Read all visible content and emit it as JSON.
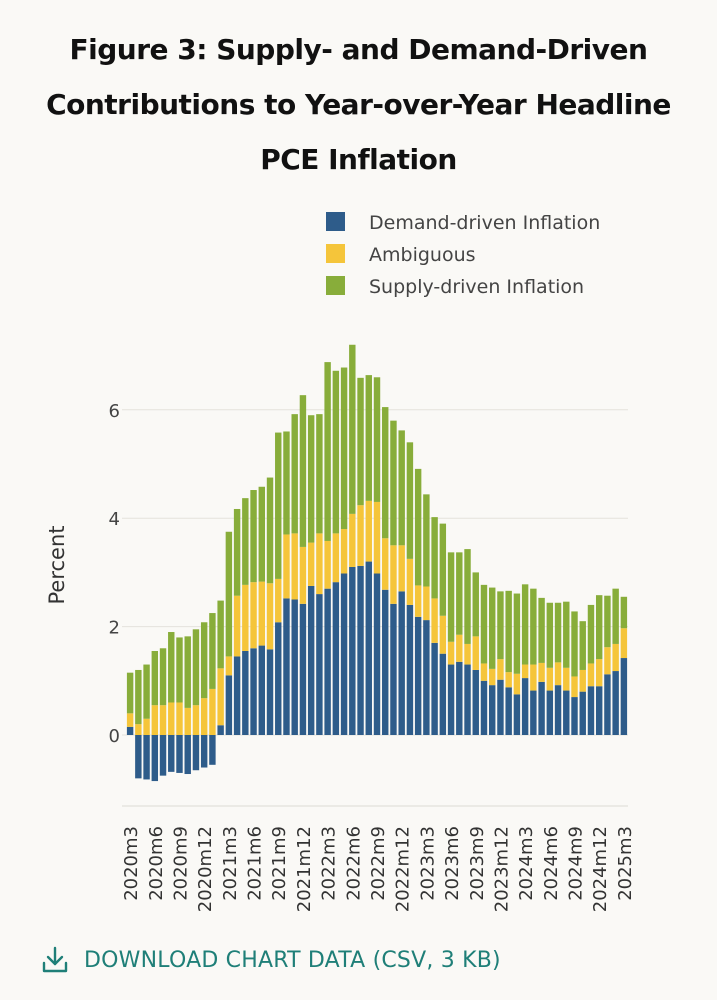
{
  "title": "Figure 3: Supply- and Demand-Driven Contributions to Year-over-Year Headline PCE Inflation",
  "download_label": "DOWNLOAD CHART DATA (CSV, 3 KB)",
  "chart_data": {
    "type": "bar",
    "stacked": true,
    "ylabel": "Percent",
    "ylim": [
      -1.4,
      7.5
    ],
    "yticks": [
      0,
      2,
      4,
      6
    ],
    "grid": true,
    "legend_position": "top-right",
    "x": [
      "2020m3",
      "2020m4",
      "2020m5",
      "2020m6",
      "2020m7",
      "2020m8",
      "2020m9",
      "2020m10",
      "2020m11",
      "2020m12",
      "2021m1",
      "2021m2",
      "2021m3",
      "2021m4",
      "2021m5",
      "2021m6",
      "2021m7",
      "2021m8",
      "2021m9",
      "2021m10",
      "2021m11",
      "2021m12",
      "2022m1",
      "2022m2",
      "2022m3",
      "2022m4",
      "2022m5",
      "2022m6",
      "2022m7",
      "2022m8",
      "2022m9",
      "2022m10",
      "2022m11",
      "2022m12",
      "2023m1",
      "2023m2",
      "2023m3",
      "2023m4",
      "2023m5",
      "2023m6",
      "2023m7",
      "2023m8",
      "2023m9",
      "2023m10",
      "2023m11",
      "2023m12",
      "2024m1",
      "2024m2",
      "2024m3",
      "2024m4",
      "2024m5",
      "2024m6",
      "2024m7",
      "2024m8",
      "2024m9",
      "2024m10",
      "2024m11",
      "2024m12",
      "2025m1",
      "2025m2",
      "2025m3"
    ],
    "tick_labels": [
      "2020m3",
      "2020m6",
      "2020m9",
      "2020m12",
      "2021m3",
      "2021m6",
      "2021m9",
      "2021m12",
      "2022m3",
      "2022m6",
      "2022m9",
      "2022m12",
      "2023m3",
      "2023m6",
      "2023m9",
      "2023m12",
      "2024m3",
      "2024m6",
      "2024m9",
      "2024m12",
      "2025m3"
    ],
    "series": [
      {
        "name": "Demand-driven Inflation",
        "color": "#2e5c8a",
        "values": [
          0.15,
          -0.8,
          -0.82,
          -0.85,
          -0.75,
          -0.68,
          -0.7,
          -0.72,
          -0.65,
          -0.6,
          -0.55,
          0.18,
          1.1,
          1.45,
          1.55,
          1.6,
          1.65,
          1.58,
          2.08,
          2.52,
          2.5,
          2.42,
          2.75,
          2.6,
          2.7,
          2.82,
          2.98,
          3.1,
          3.12,
          3.2,
          2.98,
          2.68,
          2.42,
          2.65,
          2.4,
          2.18,
          2.12,
          1.7,
          1.5,
          1.3,
          1.35,
          1.3,
          1.2,
          1.0,
          0.92,
          1.02,
          0.88,
          0.75,
          1.05,
          0.82,
          0.98,
          0.82,
          0.92,
          0.82,
          0.7,
          0.8,
          0.9,
          0.9,
          1.12,
          1.18,
          1.42
        ]
      },
      {
        "name": "Ambiguous",
        "color": "#f5c53a",
        "values": [
          0.25,
          0.2,
          0.3,
          0.55,
          0.55,
          0.6,
          0.6,
          0.5,
          0.55,
          0.68,
          0.85,
          1.05,
          0.35,
          1.12,
          1.22,
          1.22,
          1.18,
          1.22,
          0.8,
          1.18,
          1.22,
          1.05,
          0.8,
          1.12,
          0.88,
          0.9,
          0.82,
          0.98,
          1.12,
          1.12,
          1.32,
          0.95,
          1.08,
          0.85,
          0.85,
          0.58,
          0.62,
          0.82,
          0.7,
          0.42,
          0.5,
          0.38,
          0.62,
          0.32,
          0.3,
          0.38,
          0.28,
          0.38,
          0.25,
          0.48,
          0.35,
          0.42,
          0.42,
          0.42,
          0.38,
          0.4,
          0.42,
          0.5,
          0.5,
          0.5,
          0.55
        ]
      },
      {
        "name": "Supply-driven Inflation",
        "color": "#88ad3a",
        "values": [
          0.75,
          1.0,
          1.0,
          1.0,
          1.05,
          1.3,
          1.2,
          1.32,
          1.4,
          1.4,
          1.4,
          1.25,
          2.3,
          1.6,
          1.6,
          1.7,
          1.75,
          1.95,
          2.7,
          1.9,
          2.2,
          2.8,
          2.35,
          2.2,
          3.3,
          3.0,
          2.98,
          3.12,
          2.35,
          2.32,
          2.3,
          2.42,
          2.3,
          2.12,
          2.15,
          2.15,
          1.7,
          1.5,
          1.7,
          1.65,
          1.52,
          1.75,
          1.18,
          1.45,
          1.5,
          1.25,
          1.5,
          1.48,
          1.48,
          1.4,
          1.2,
          1.2,
          1.1,
          1.22,
          1.2,
          0.9,
          1.08,
          1.18,
          0.95,
          1.02,
          0.58
        ]
      }
    ]
  }
}
